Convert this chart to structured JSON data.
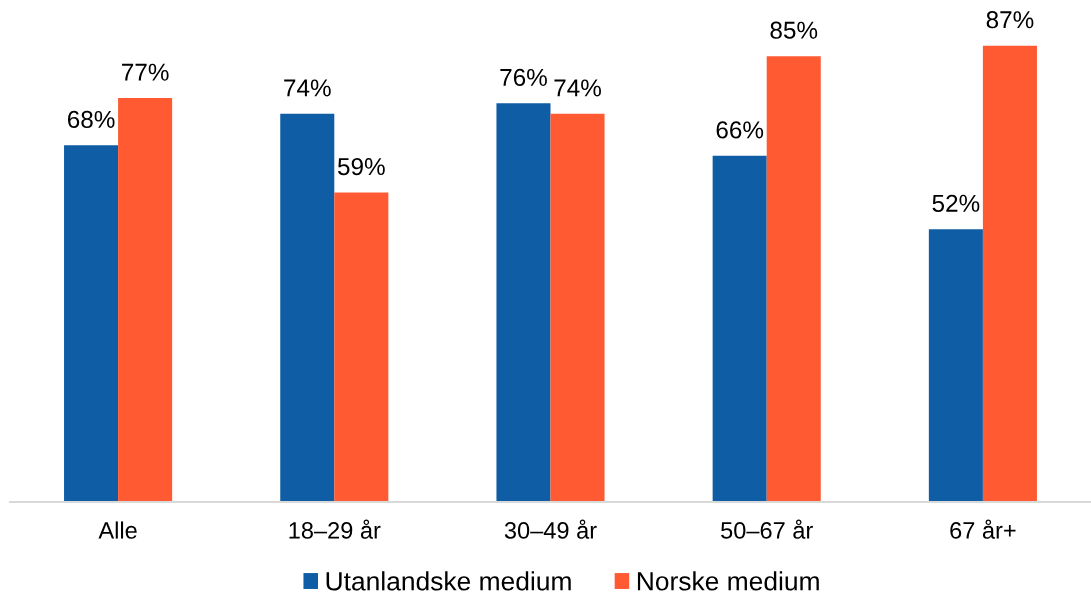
{
  "chart_data": {
    "type": "bar",
    "categories": [
      "Alle",
      "18–29 år",
      "30–49 år",
      "50–67 år",
      "67 år+"
    ],
    "series": [
      {
        "name": "Utanlandske medium",
        "color": "#0e5da5",
        "values": [
          68,
          74,
          76,
          66,
          52
        ],
        "value_labels": [
          "68%",
          "74%",
          "76%",
          "66%",
          "52%"
        ]
      },
      {
        "name": "Norske medium",
        "color": "#ff5a32",
        "values": [
          77,
          59,
          74,
          85,
          87
        ],
        "value_labels": [
          "77%",
          "59%",
          "74%",
          "85%",
          "87%"
        ]
      }
    ],
    "tick_labels": "x",
    "legend": "bottom",
    "grid": false
  }
}
